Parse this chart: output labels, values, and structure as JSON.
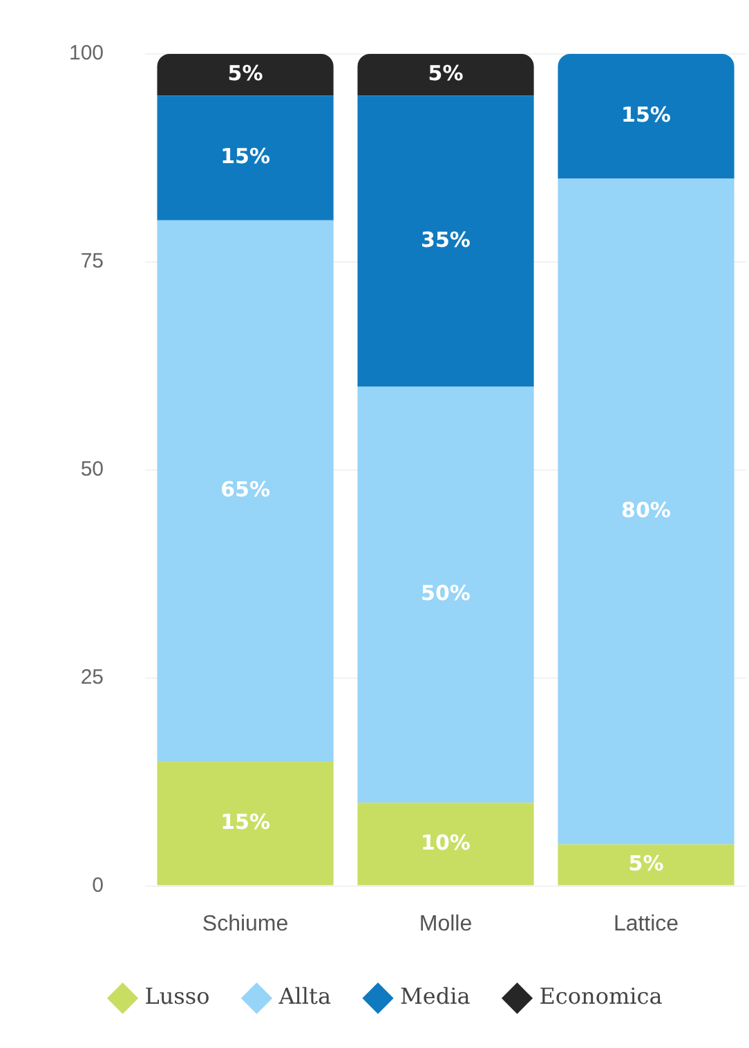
{
  "chart_data": {
    "type": "bar",
    "stacked": true,
    "categories": [
      "Schiume",
      "Molle",
      "Lattice"
    ],
    "series": [
      {
        "name": "Lusso",
        "color": "#c8de62",
        "values": [
          15,
          10,
          5
        ],
        "value_labels": [
          "15%",
          "10%",
          "5%"
        ]
      },
      {
        "name": "Allta",
        "color": "#96d4f8",
        "values": [
          65,
          50,
          80
        ],
        "value_labels": [
          "65%",
          "50%",
          "80%"
        ]
      },
      {
        "name": "Media",
        "color": "#0f7abf",
        "values": [
          15,
          35,
          15
        ],
        "value_labels": [
          "15%",
          "35%",
          "15%"
        ]
      },
      {
        "name": "Economica",
        "color": "#262626",
        "values": [
          5,
          5,
          0
        ],
        "value_labels": [
          "5%",
          "5%",
          null
        ]
      }
    ],
    "ylim": [
      0,
      100
    ],
    "yticks": [
      0,
      25,
      50,
      75,
      100
    ],
    "grid": "y",
    "legend": "bottom"
  }
}
